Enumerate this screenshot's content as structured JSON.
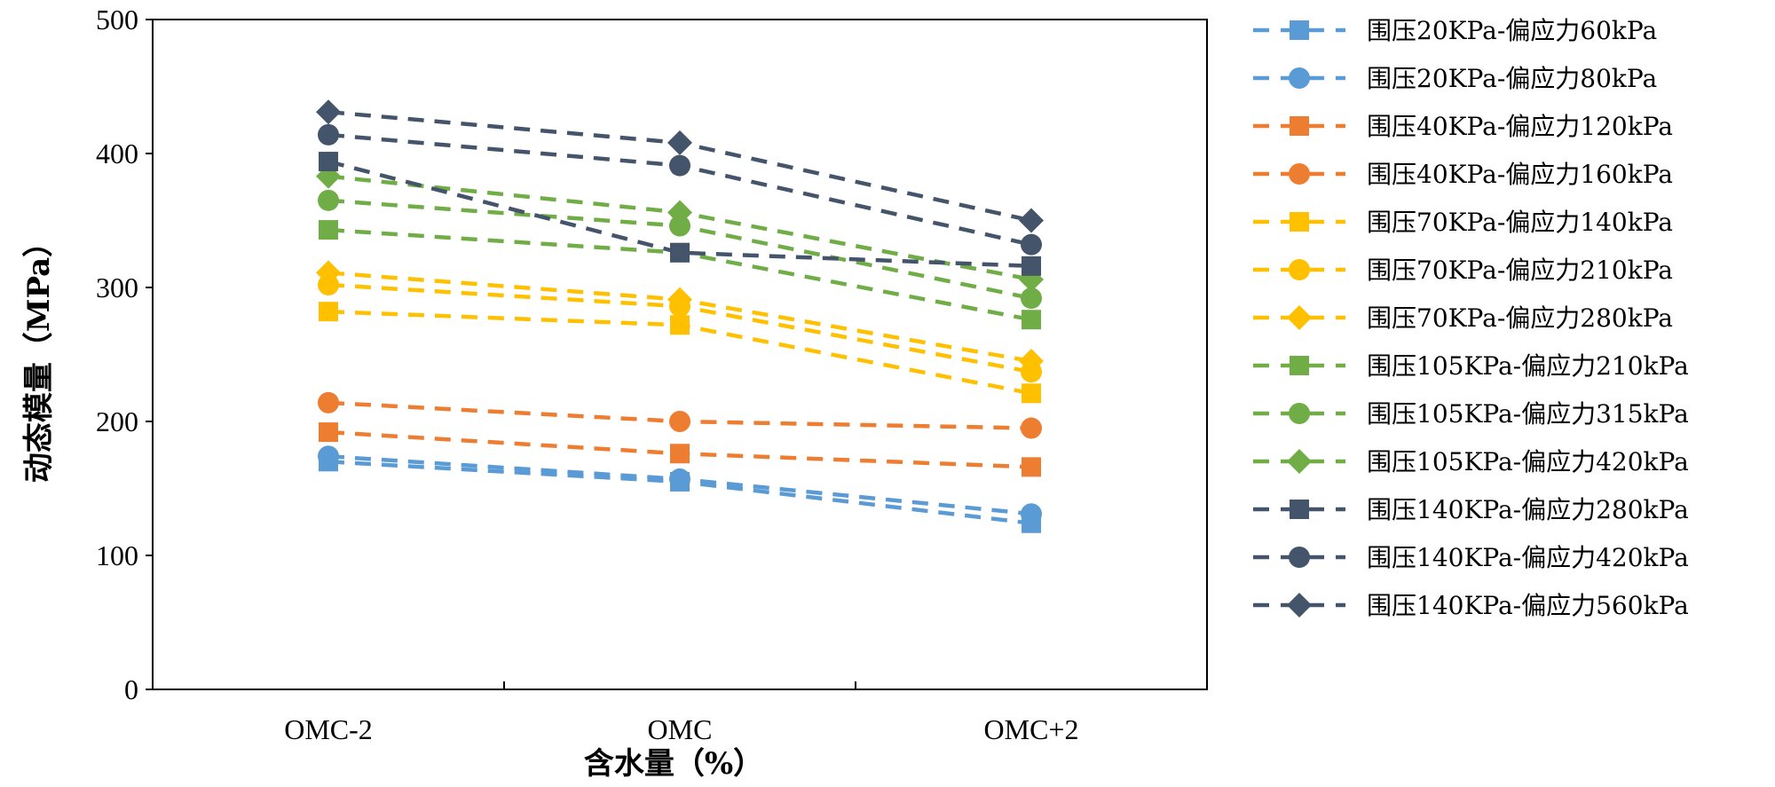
{
  "chart_data": {
    "type": "line",
    "title": "",
    "xlabel": "含水量（%）",
    "ylabel": "动态模量（MPa）",
    "categories": [
      "OMC-2",
      "OMC",
      "OMC+2"
    ],
    "ylim": [
      0,
      500
    ],
    "yticks": [
      0,
      100,
      200,
      300,
      400,
      500
    ],
    "grid": false,
    "legend_position": "right",
    "series": [
      {
        "name": "围压20KPa-偏应力60kPa",
        "color": "#5B9BD5",
        "marker": "square",
        "values": [
          170,
          155,
          124
        ]
      },
      {
        "name": "围压20KPa-偏应力80kPa",
        "color": "#5B9BD5",
        "marker": "circle",
        "values": [
          174,
          157,
          131
        ]
      },
      {
        "name": "围压40KPa-偏应力120kPa",
        "color": "#ED7D31",
        "marker": "square",
        "values": [
          192,
          176,
          166
        ]
      },
      {
        "name": "围压40KPa-偏应力160kPa",
        "color": "#ED7D31",
        "marker": "circle",
        "values": [
          214,
          200,
          195
        ]
      },
      {
        "name": "围压70KPa-偏应力140kPa",
        "color": "#FFC000",
        "marker": "square",
        "values": [
          282,
          272,
          221
        ]
      },
      {
        "name": "围压70KPa-偏应力210kPa",
        "color": "#FFC000",
        "marker": "circle",
        "values": [
          302,
          286,
          237
        ]
      },
      {
        "name": "围压70KPa-偏应力280kPa",
        "color": "#FFC000",
        "marker": "diamond",
        "values": [
          311,
          291,
          245
        ]
      },
      {
        "name": "围压105KPa-偏应力210kPa",
        "color": "#70AD47",
        "marker": "square",
        "values": [
          343,
          326,
          276
        ]
      },
      {
        "name": "围压105KPa-偏应力315kPa",
        "color": "#70AD47",
        "marker": "circle",
        "values": [
          365,
          346,
          292
        ]
      },
      {
        "name": "围压105KPa-偏应力420kPa",
        "color": "#70AD47",
        "marker": "diamond",
        "values": [
          383,
          356,
          306
        ]
      },
      {
        "name": "围压140KPa-偏应力280kPa",
        "color": "#44546A",
        "marker": "square",
        "values": [
          394,
          326,
          316
        ]
      },
      {
        "name": "围压140KPa-偏应力420kPa",
        "color": "#44546A",
        "marker": "circle",
        "values": [
          414,
          391,
          332
        ]
      },
      {
        "name": "围压140KPa-偏应力560kPa",
        "color": "#44546A",
        "marker": "diamond",
        "values": [
          431,
          408,
          350
        ]
      }
    ]
  }
}
